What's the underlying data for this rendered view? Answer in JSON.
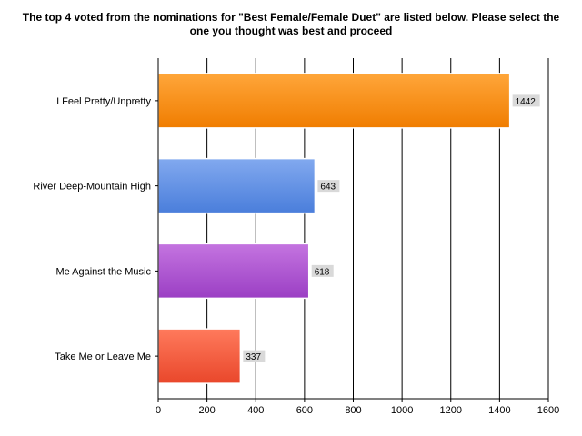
{
  "chart_data": {
    "type": "bar",
    "orientation": "horizontal",
    "title": "The top 4 voted from the nominations for \"Best Female/Female Duet\" are listed below. Please select the one you thought was best and proceed",
    "categories": [
      "I Feel Pretty/Unpretty",
      "River Deep-Mountain High",
      "Me Against the Music",
      "Take Me or Leave Me"
    ],
    "values": [
      1442,
      643,
      618,
      337
    ],
    "colors": [
      "#f07d00",
      "#4a7edb",
      "#9b3fc4",
      "#e9472b"
    ],
    "colors_light": [
      "#ffa63a",
      "#82a9ef",
      "#c474e0",
      "#ff7a5c"
    ],
    "xlim": [
      0,
      1600
    ],
    "xticks": [
      0,
      200,
      400,
      600,
      800,
      1000,
      1200,
      1400,
      1600
    ],
    "grid": true,
    "data_labels": true
  }
}
